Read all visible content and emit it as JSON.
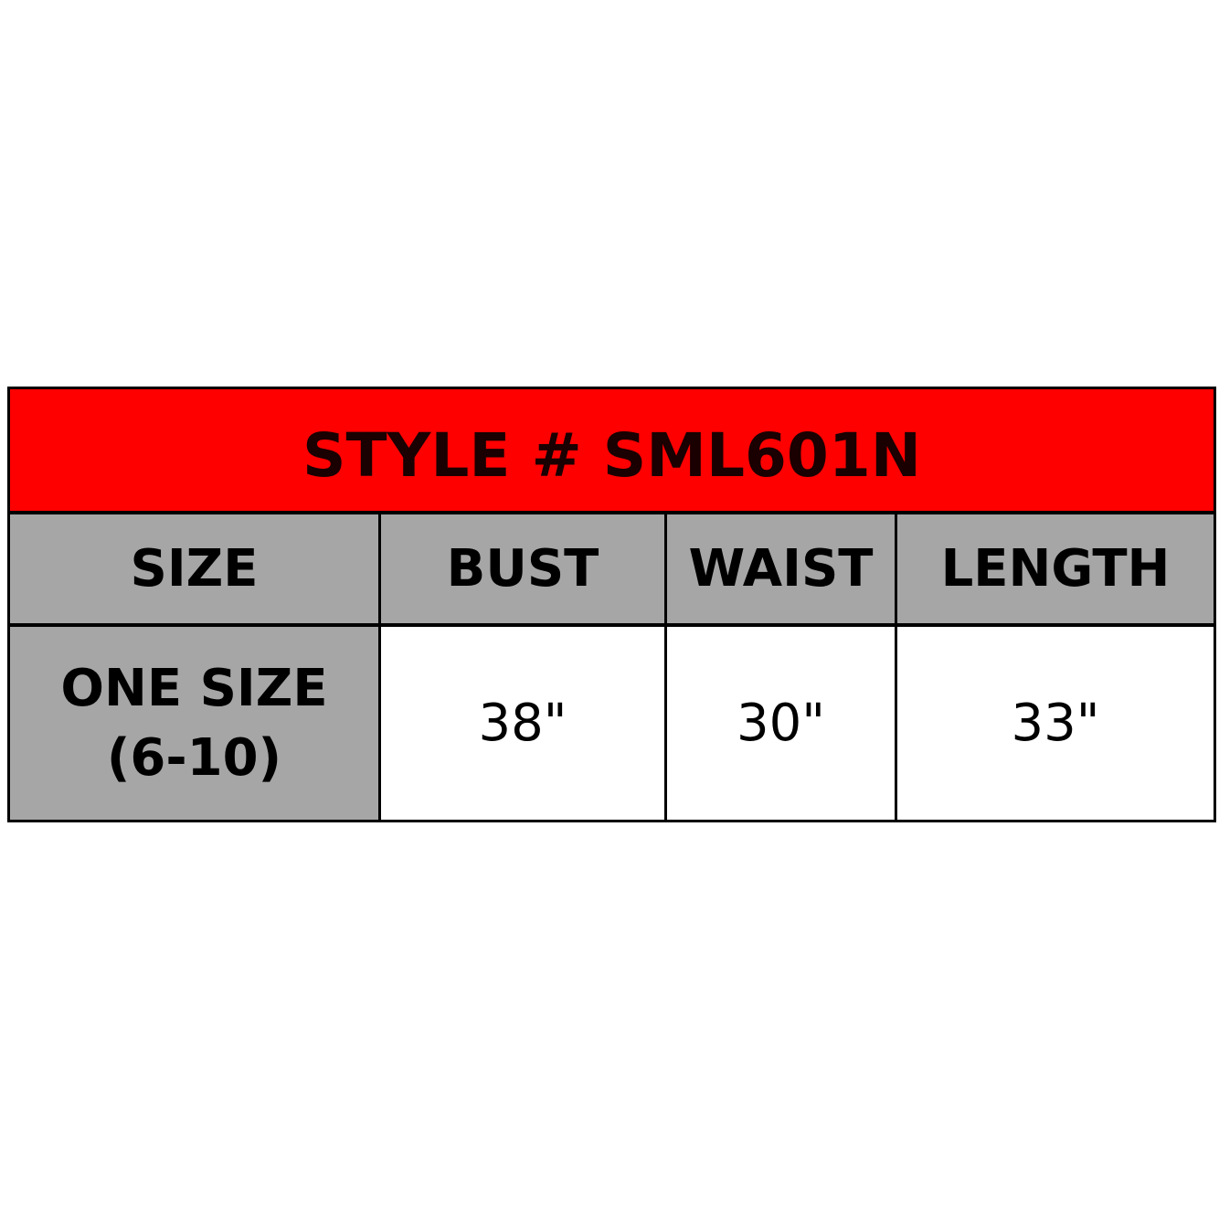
{
  "title": "STYLE # SML601N",
  "colors": {
    "title_bg": "#ff0000",
    "header_bg": "#a6a6a6",
    "border": "#000000"
  },
  "headers": [
    "SIZE",
    "BUST",
    "WAIST",
    "LENGTH"
  ],
  "rows": [
    {
      "size_line1": "ONE SIZE",
      "size_line2": "(6-10)",
      "bust": "38\"",
      "waist": "30\"",
      "length": "33\""
    }
  ]
}
